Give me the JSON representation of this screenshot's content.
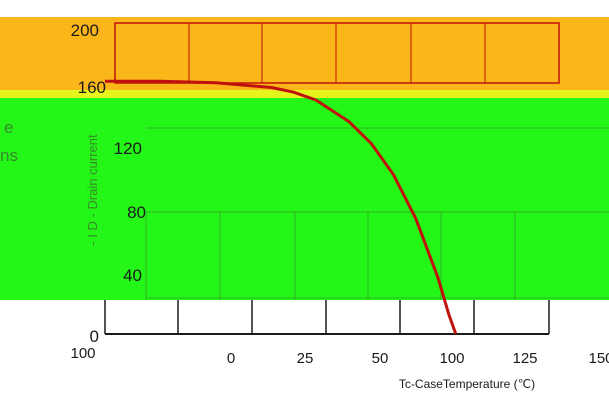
{
  "chart_data": {
    "type": "line",
    "title": "",
    "xlabel": "Tc-CaseTemperature (℃)",
    "ylabel": "- I D - Drain current",
    "x_ticks": [
      "100",
      "0",
      "25",
      "50",
      "100",
      "125",
      "150"
    ],
    "y_ticks": [
      "0",
      "40",
      "80",
      "120",
      "160",
      "200"
    ],
    "xlim": [
      -50,
      150
    ],
    "ylim": [
      0,
      200
    ],
    "side_text": [
      "e",
      "ns"
    ],
    "series": [
      {
        "color": "#c0120c",
        "x": [
          -50,
          -25,
          0,
          25,
          35,
          45,
          60,
          70,
          80,
          90,
          100,
          105,
          108
        ],
        "y": [
          162,
          162,
          161,
          158,
          155,
          150,
          136,
          122,
          102,
          74,
          36,
          12,
          0
        ]
      }
    ],
    "colors": {
      "orange_band": "#fbb619",
      "yellow_band": "#e6f41e",
      "green_band": "#24f618",
      "grid_upper": "#c0120c",
      "grid_lower": "#1a1a1a"
    }
  }
}
